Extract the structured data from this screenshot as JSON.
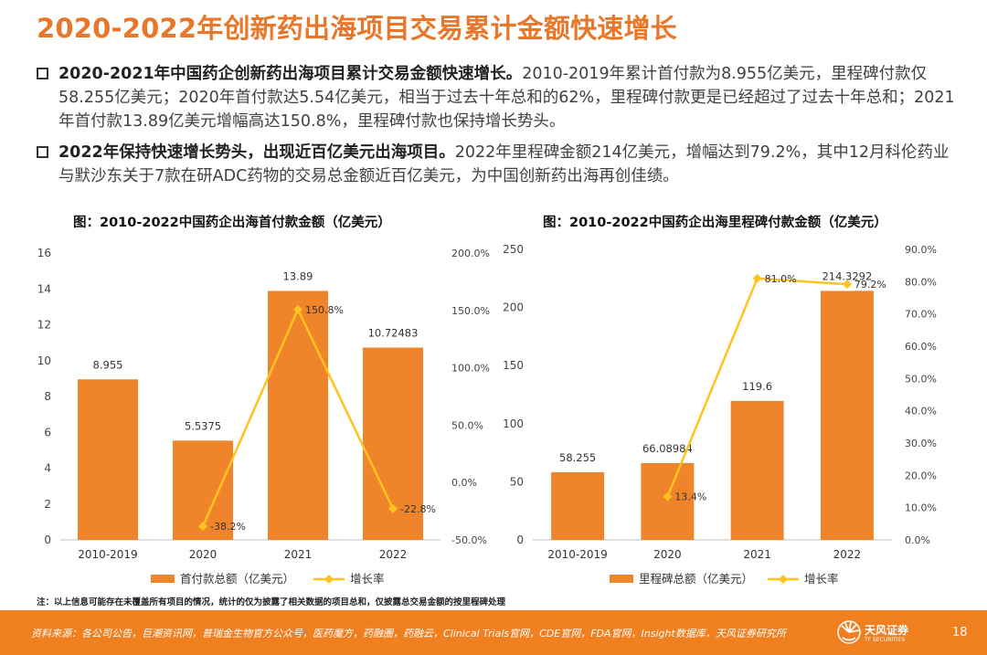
{
  "title": "2020-2022年创新药出海项目交易累计金额快速增长",
  "bullets": [
    {
      "lead": "2020-2021年中国药企创新药出海项目累计交易金额快速增长。",
      "text": "2010-2019年累计首付款为8.955亿美元，里程碑付款仅58.255亿美元；2020年首付款达5.54亿美元，相当于过去十年总和的62%，里程碑付款更是已经超过了过去十年总和；2021年首付款13.89亿美元增幅高达150.8%，里程碑付款也保持增长势头。"
    },
    {
      "lead": "2022年保持快速增长势头，出现近百亿美元出海项目。",
      "text": "2022年里程碑金额214亿美元，增幅达到79.2%，其中12月科伦药业与默沙东关于7款在研ADC药物的交易总金额近百亿美元，为中国创新药出海再创佳绩。"
    }
  ],
  "note": "注：以上信息可能存在未覆盖所有项目的情况，统计的仅为披露了相关数据的项目总和，仅披露总交易金额的按里程碑处理",
  "footer": {
    "source": "资料来源：各公司公告，巨潮资讯网，普瑞金生物官方公众号，医药魔方，药融圈，药融云，Clinical Trials官网，CDE官网，FDA官网，Insight数据库，天风证券研究所",
    "logo_text": "天风证券",
    "logo_sub": "TF SECURITIES",
    "page_number": "18"
  },
  "colors": {
    "accent": "#E8772A",
    "bar": "#F0842A",
    "line": "#FFC21E",
    "footer": "#F07F1F"
  },
  "chart_data": [
    {
      "type": "bar",
      "title": "图：2010-2022中国药企出海首付款金额（亿美元）",
      "categories": [
        "2010-2019",
        "2020",
        "2021",
        "2022"
      ],
      "series": [
        {
          "name": "首付款总额（亿美元）",
          "type": "bar",
          "axis": "left",
          "values": [
            8.955,
            5.5375,
            13.89,
            10.72483
          ],
          "labels": [
            "8.955",
            "5.5375",
            "13.89",
            "10.72483"
          ]
        },
        {
          "name": "增长率",
          "type": "line",
          "axis": "right",
          "values": [
            null,
            -38.2,
            150.8,
            -22.8
          ],
          "labels": [
            "",
            "-38.2%",
            "150.8%",
            "-22.8%"
          ]
        }
      ],
      "ylim_left": [
        0,
        16
      ],
      "yticks_left": [
        0,
        2,
        4,
        6,
        8,
        10,
        12,
        14,
        16
      ],
      "ylim_right": [
        -50,
        200
      ],
      "yticks_right": [
        -50,
        0,
        50,
        100,
        150,
        200
      ],
      "yticklabels_right": [
        "-50.0%",
        "0.0%",
        "50.0%",
        "100.0%",
        "150.0%",
        "200.0%"
      ],
      "legend": "bottom"
    },
    {
      "type": "bar",
      "title": "图：2010-2022中国药企出海里程碑付款金额（亿美元）",
      "categories": [
        "2010-2019",
        "2020",
        "2021",
        "2022"
      ],
      "series": [
        {
          "name": "里程碑总额（亿美元）",
          "type": "bar",
          "axis": "left",
          "values": [
            58.255,
            66.08984,
            119.6,
            214.3292
          ],
          "labels": [
            "58.255",
            "66.08984",
            "119.6",
            "214.3292"
          ]
        },
        {
          "name": "增长率",
          "type": "line",
          "axis": "right",
          "values": [
            null,
            13.4,
            81.0,
            79.2
          ],
          "labels": [
            "",
            "13.4%",
            "81.0%",
            "79.2%"
          ]
        }
      ],
      "ylim_left": [
        0,
        250
      ],
      "yticks_left": [
        0,
        50,
        100,
        150,
        200,
        250
      ],
      "ylim_right": [
        0,
        90
      ],
      "yticks_right": [
        0,
        10,
        20,
        30,
        40,
        50,
        60,
        70,
        80,
        90
      ],
      "yticklabels_right": [
        "0.0%",
        "10.0%",
        "20.0%",
        "30.0%",
        "40.0%",
        "50.0%",
        "60.0%",
        "70.0%",
        "80.0%",
        "90.0%"
      ],
      "legend": "bottom"
    }
  ]
}
